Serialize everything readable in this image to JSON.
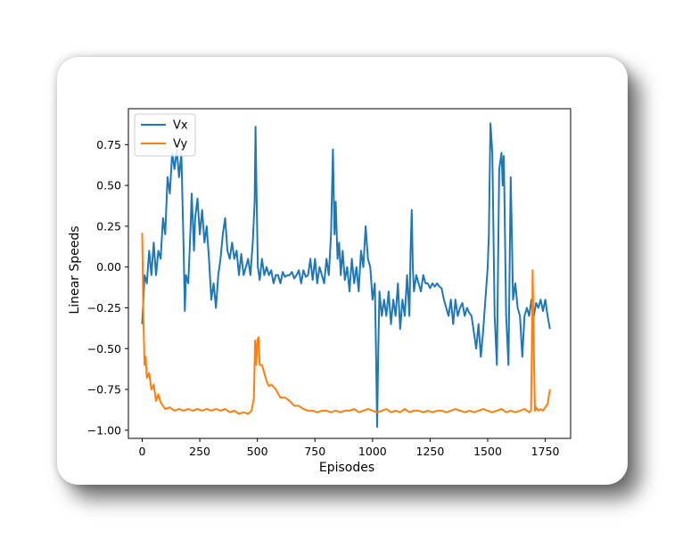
{
  "chart_data": {
    "type": "line",
    "title": "",
    "xlabel": "Episodes",
    "ylabel": "Linear Speeds",
    "xlim": [
      -60,
      1860
    ],
    "ylim": [
      -1.05,
      0.97
    ],
    "xticks": [
      0,
      250,
      500,
      750,
      1000,
      1250,
      1500,
      1750
    ],
    "yticks": [
      -1.0,
      -0.75,
      -0.5,
      -0.25,
      0.0,
      0.25,
      0.5,
      0.75
    ],
    "ytick_labels": [
      "−1.00",
      "−0.75",
      "−0.50",
      "−0.25",
      "0.00",
      "0.25",
      "0.50",
      "0.75"
    ],
    "grid": false,
    "legend": "upper-left",
    "series": [
      {
        "name": "Vx",
        "color": "#1f77b4",
        "points": [
          [
            0,
            -0.35
          ],
          [
            10,
            -0.05
          ],
          [
            20,
            -0.1
          ],
          [
            30,
            0.1
          ],
          [
            40,
            -0.05
          ],
          [
            50,
            0.15
          ],
          [
            60,
            -0.05
          ],
          [
            70,
            0.1
          ],
          [
            80,
            0.05
          ],
          [
            90,
            0.3
          ],
          [
            100,
            0.2
          ],
          [
            110,
            0.55
          ],
          [
            120,
            0.45
          ],
          [
            130,
            0.7
          ],
          [
            140,
            0.6
          ],
          [
            150,
            0.72
          ],
          [
            160,
            0.55
          ],
          [
            170,
            0.7
          ],
          [
            180,
            0.1
          ],
          [
            185,
            -0.27
          ],
          [
            190,
            -0.05
          ],
          [
            200,
            -0.1
          ],
          [
            210,
            0.25
          ],
          [
            215,
            0.45
          ],
          [
            225,
            0.1
          ],
          [
            230,
            0.3
          ],
          [
            240,
            0.42
          ],
          [
            250,
            0.2
          ],
          [
            260,
            0.35
          ],
          [
            270,
            0.15
          ],
          [
            280,
            0.25
          ],
          [
            290,
            0.05
          ],
          [
            300,
            -0.2
          ],
          [
            310,
            -0.1
          ],
          [
            320,
            -0.25
          ],
          [
            330,
            -0.05
          ],
          [
            340,
            0.05
          ],
          [
            350,
            0.2
          ],
          [
            360,
            0.3
          ],
          [
            370,
            0.1
          ],
          [
            380,
            0.05
          ],
          [
            390,
            0.15
          ],
          [
            400,
            0.05
          ],
          [
            410,
            0.1
          ],
          [
            420,
            -0.05
          ],
          [
            430,
            0.08
          ],
          [
            440,
            -0.05
          ],
          [
            450,
            0.0
          ],
          [
            460,
            0.05
          ],
          [
            470,
            -0.05
          ],
          [
            480,
            0.15
          ],
          [
            488,
            0.4
          ],
          [
            492,
            0.86
          ],
          [
            497,
            0.4
          ],
          [
            502,
            0.0
          ],
          [
            510,
            -0.08
          ],
          [
            520,
            0.05
          ],
          [
            530,
            -0.05
          ],
          [
            540,
            0.0
          ],
          [
            550,
            -0.05
          ],
          [
            560,
            -0.02
          ],
          [
            570,
            -0.1
          ],
          [
            580,
            -0.05
          ],
          [
            590,
            -0.05
          ],
          [
            600,
            -0.1
          ],
          [
            610,
            -0.03
          ],
          [
            620,
            -0.06
          ],
          [
            630,
            -0.05
          ],
          [
            640,
            -0.05
          ],
          [
            650,
            -0.03
          ],
          [
            660,
            -0.07
          ],
          [
            670,
            -0.05
          ],
          [
            680,
            -0.02
          ],
          [
            690,
            -0.1
          ],
          [
            700,
            -0.02
          ],
          [
            710,
            -0.06
          ],
          [
            720,
            -0.05
          ],
          [
            730,
            0.05
          ],
          [
            740,
            -0.08
          ],
          [
            750,
            0.05
          ],
          [
            760,
            -0.1
          ],
          [
            770,
            0.0
          ],
          [
            780,
            -0.05
          ],
          [
            790,
            -0.1
          ],
          [
            800,
            0.05
          ],
          [
            810,
            -0.05
          ],
          [
            820,
            0.2
          ],
          [
            828,
            0.72
          ],
          [
            835,
            0.2
          ],
          [
            840,
            0.4
          ],
          [
            848,
            0.05
          ],
          [
            855,
            0.15
          ],
          [
            862,
            -0.05
          ],
          [
            870,
            0.1
          ],
          [
            880,
            -0.08
          ],
          [
            890,
            0.0
          ],
          [
            900,
            -0.15
          ],
          [
            910,
            0.05
          ],
          [
            920,
            -0.1
          ],
          [
            930,
            0.0
          ],
          [
            940,
            -0.15
          ],
          [
            950,
            0.1
          ],
          [
            960,
            0.0
          ],
          [
            970,
            0.25
          ],
          [
            980,
            0.05
          ],
          [
            990,
            0.0
          ],
          [
            1000,
            -0.2
          ],
          [
            1010,
            -0.1
          ],
          [
            1015,
            -0.5
          ],
          [
            1020,
            -0.98
          ],
          [
            1025,
            -0.5
          ],
          [
            1030,
            -0.15
          ],
          [
            1040,
            -0.3
          ],
          [
            1050,
            -0.2
          ],
          [
            1060,
            -0.3
          ],
          [
            1070,
            -0.15
          ],
          [
            1080,
            -0.35
          ],
          [
            1090,
            -0.2
          ],
          [
            1100,
            -0.3
          ],
          [
            1110,
            -0.1
          ],
          [
            1120,
            -0.38
          ],
          [
            1130,
            -0.2
          ],
          [
            1140,
            -0.3
          ],
          [
            1150,
            -0.05
          ],
          [
            1160,
            -0.3
          ],
          [
            1165,
            0.1
          ],
          [
            1170,
            0.35
          ],
          [
            1175,
            0.0
          ],
          [
            1180,
            -0.15
          ],
          [
            1190,
            -0.05
          ],
          [
            1200,
            -0.1
          ],
          [
            1210,
            -0.15
          ],
          [
            1220,
            -0.05
          ],
          [
            1230,
            -0.1
          ],
          [
            1240,
            -0.1
          ],
          [
            1250,
            -0.13
          ],
          [
            1260,
            -0.1
          ],
          [
            1270,
            -0.12
          ],
          [
            1280,
            -0.1
          ],
          [
            1290,
            -0.12
          ],
          [
            1300,
            -0.13
          ],
          [
            1310,
            -0.2
          ],
          [
            1320,
            -0.25
          ],
          [
            1330,
            -0.3
          ],
          [
            1340,
            -0.2
          ],
          [
            1350,
            -0.35
          ],
          [
            1360,
            -0.2
          ],
          [
            1370,
            -0.3
          ],
          [
            1380,
            -0.25
          ],
          [
            1390,
            -0.22
          ],
          [
            1400,
            -0.3
          ],
          [
            1410,
            -0.25
          ],
          [
            1420,
            -0.28
          ],
          [
            1430,
            -0.3
          ],
          [
            1440,
            -0.4
          ],
          [
            1450,
            -0.5
          ],
          [
            1460,
            -0.35
          ],
          [
            1470,
            -0.55
          ],
          [
            1480,
            -0.4
          ],
          [
            1490,
            -0.2
          ],
          [
            1500,
            0.0
          ],
          [
            1505,
            0.2
          ],
          [
            1512,
            0.88
          ],
          [
            1520,
            0.7
          ],
          [
            1530,
            -0.3
          ],
          [
            1540,
            -0.6
          ],
          [
            1550,
            0.6
          ],
          [
            1560,
            0.7
          ],
          [
            1565,
            0.5
          ],
          [
            1570,
            0.68
          ],
          [
            1580,
            -0.3
          ],
          [
            1590,
            -0.6
          ],
          [
            1600,
            0.55
          ],
          [
            1605,
            0.2
          ],
          [
            1610,
            -0.2
          ],
          [
            1620,
            -0.1
          ],
          [
            1630,
            -0.25
          ],
          [
            1640,
            -0.3
          ],
          [
            1650,
            -0.55
          ],
          [
            1660,
            -0.3
          ],
          [
            1670,
            -0.25
          ],
          [
            1680,
            -0.3
          ],
          [
            1690,
            -0.2
          ],
          [
            1700,
            -0.3
          ],
          [
            1710,
            -0.22
          ],
          [
            1720,
            -0.25
          ],
          [
            1730,
            -0.2
          ],
          [
            1740,
            -0.27
          ],
          [
            1750,
            -0.2
          ],
          [
            1760,
            -0.3
          ],
          [
            1770,
            -0.38
          ]
        ]
      },
      {
        "name": "Vy",
        "color": "#ff7f0e",
        "points": [
          [
            0,
            0.21
          ],
          [
            5,
            -0.3
          ],
          [
            10,
            -0.6
          ],
          [
            15,
            -0.55
          ],
          [
            20,
            -0.68
          ],
          [
            30,
            -0.65
          ],
          [
            40,
            -0.75
          ],
          [
            50,
            -0.72
          ],
          [
            60,
            -0.82
          ],
          [
            70,
            -0.78
          ],
          [
            80,
            -0.83
          ],
          [
            90,
            -0.85
          ],
          [
            100,
            -0.87
          ],
          [
            120,
            -0.86
          ],
          [
            140,
            -0.88
          ],
          [
            160,
            -0.87
          ],
          [
            180,
            -0.88
          ],
          [
            200,
            -0.87
          ],
          [
            220,
            -0.88
          ],
          [
            240,
            -0.87
          ],
          [
            260,
            -0.88
          ],
          [
            280,
            -0.87
          ],
          [
            300,
            -0.88
          ],
          [
            320,
            -0.87
          ],
          [
            340,
            -0.88
          ],
          [
            360,
            -0.87
          ],
          [
            380,
            -0.89
          ],
          [
            400,
            -0.88
          ],
          [
            420,
            -0.9
          ],
          [
            440,
            -0.89
          ],
          [
            460,
            -0.9
          ],
          [
            475,
            -0.88
          ],
          [
            485,
            -0.8
          ],
          [
            490,
            -0.45
          ],
          [
            495,
            -0.6
          ],
          [
            500,
            -0.45
          ],
          [
            505,
            -0.43
          ],
          [
            510,
            -0.6
          ],
          [
            520,
            -0.6
          ],
          [
            530,
            -0.65
          ],
          [
            540,
            -0.7
          ],
          [
            550,
            -0.73
          ],
          [
            560,
            -0.72
          ],
          [
            580,
            -0.75
          ],
          [
            600,
            -0.8
          ],
          [
            620,
            -0.8
          ],
          [
            640,
            -0.82
          ],
          [
            660,
            -0.85
          ],
          [
            680,
            -0.85
          ],
          [
            700,
            -0.87
          ],
          [
            720,
            -0.88
          ],
          [
            740,
            -0.88
          ],
          [
            760,
            -0.89
          ],
          [
            780,
            -0.88
          ],
          [
            800,
            -0.88
          ],
          [
            820,
            -0.89
          ],
          [
            840,
            -0.88
          ],
          [
            860,
            -0.89
          ],
          [
            880,
            -0.88
          ],
          [
            900,
            -0.88
          ],
          [
            920,
            -0.87
          ],
          [
            940,
            -0.89
          ],
          [
            960,
            -0.88
          ],
          [
            980,
            -0.87
          ],
          [
            1000,
            -0.88
          ],
          [
            1020,
            -0.89
          ],
          [
            1040,
            -0.88
          ],
          [
            1060,
            -0.87
          ],
          [
            1080,
            -0.89
          ],
          [
            1100,
            -0.88
          ],
          [
            1120,
            -0.89
          ],
          [
            1140,
            -0.87
          ],
          [
            1160,
            -0.89
          ],
          [
            1180,
            -0.88
          ],
          [
            1200,
            -0.88
          ],
          [
            1220,
            -0.89
          ],
          [
            1240,
            -0.88
          ],
          [
            1260,
            -0.89
          ],
          [
            1280,
            -0.88
          ],
          [
            1300,
            -0.88
          ],
          [
            1320,
            -0.89
          ],
          [
            1340,
            -0.88
          ],
          [
            1360,
            -0.87
          ],
          [
            1380,
            -0.88
          ],
          [
            1400,
            -0.89
          ],
          [
            1420,
            -0.88
          ],
          [
            1440,
            -0.89
          ],
          [
            1460,
            -0.88
          ],
          [
            1480,
            -0.87
          ],
          [
            1500,
            -0.88
          ],
          [
            1520,
            -0.89
          ],
          [
            1540,
            -0.88
          ],
          [
            1560,
            -0.87
          ],
          [
            1580,
            -0.89
          ],
          [
            1600,
            -0.88
          ],
          [
            1620,
            -0.89
          ],
          [
            1640,
            -0.88
          ],
          [
            1660,
            -0.87
          ],
          [
            1680,
            -0.89
          ],
          [
            1688,
            -0.88
          ],
          [
            1692,
            -0.45
          ],
          [
            1695,
            -0.02
          ],
          [
            1700,
            -0.5
          ],
          [
            1705,
            -0.88
          ],
          [
            1710,
            -0.86
          ],
          [
            1720,
            -0.88
          ],
          [
            1730,
            -0.87
          ],
          [
            1740,
            -0.88
          ],
          [
            1750,
            -0.86
          ],
          [
            1760,
            -0.84
          ],
          [
            1770,
            -0.75
          ]
        ]
      }
    ]
  }
}
